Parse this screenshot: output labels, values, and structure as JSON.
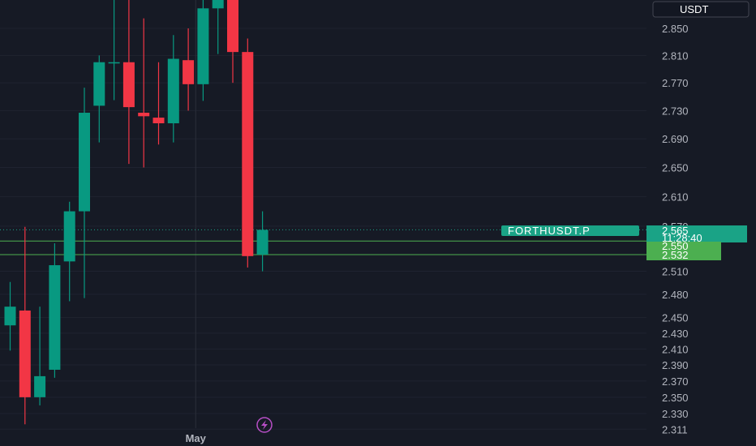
{
  "chart_data": {
    "type": "candlestick",
    "currency": "USDT",
    "symbol": "FORTHUSDT.P",
    "price_axis": {
      "ticks": [
        "2.850",
        "2.810",
        "2.770",
        "2.730",
        "2.690",
        "2.650",
        "2.610",
        "2.570",
        "2.510",
        "2.480",
        "2.450",
        "2.430",
        "2.410",
        "2.390",
        "2.370",
        "2.350",
        "2.330",
        "2.311"
      ],
      "scale": "log"
    },
    "time_axis": {
      "labels": [
        {
          "text": "May",
          "index": 12.5
        }
      ]
    },
    "last_price": "2.565",
    "countdown": "11:28:40",
    "horizontal_lines": [
      {
        "label": "2.550",
        "price": 2.55
      },
      {
        "label": "2.532",
        "price": 2.532
      }
    ],
    "candles": [
      {
        "o": 2.44,
        "h": 2.496,
        "l": 2.408,
        "c": 2.464
      },
      {
        "o": 2.459,
        "h": 2.569,
        "l": 2.317,
        "c": 2.35
      },
      {
        "o": 2.35,
        "h": 2.464,
        "l": 2.34,
        "c": 2.376
      },
      {
        "o": 2.384,
        "h": 2.547,
        "l": 2.374,
        "c": 2.518
      },
      {
        "o": 2.523,
        "h": 2.603,
        "l": 2.471,
        "c": 2.59
      },
      {
        "o": 2.59,
        "h": 2.763,
        "l": 2.475,
        "c": 2.727
      },
      {
        "o": 2.737,
        "h": 2.81,
        "l": 2.685,
        "c": 2.8
      },
      {
        "o": 2.8,
        "h": 2.92,
        "l": 2.745,
        "c": 2.8
      },
      {
        "o": 2.8,
        "h": 2.9,
        "l": 2.655,
        "c": 2.735
      },
      {
        "o": 2.727,
        "h": 2.865,
        "l": 2.65,
        "c": 2.722
      },
      {
        "o": 2.72,
        "h": 2.8,
        "l": 2.682,
        "c": 2.712
      },
      {
        "o": 2.712,
        "h": 2.84,
        "l": 2.685,
        "c": 2.805
      },
      {
        "o": 2.803,
        "h": 2.85,
        "l": 2.73,
        "c": 2.768
      },
      {
        "o": 2.768,
        "h": 2.92,
        "l": 2.744,
        "c": 2.88
      },
      {
        "o": 2.88,
        "h": 2.92,
        "l": 2.812,
        "c": 2.92
      },
      {
        "o": 2.92,
        "h": 2.92,
        "l": 2.77,
        "c": 2.815
      },
      {
        "o": 2.815,
        "h": 2.835,
        "l": 2.515,
        "c": 2.53
      },
      {
        "o": 2.532,
        "h": 2.59,
        "l": 2.51,
        "c": 2.565
      }
    ]
  }
}
